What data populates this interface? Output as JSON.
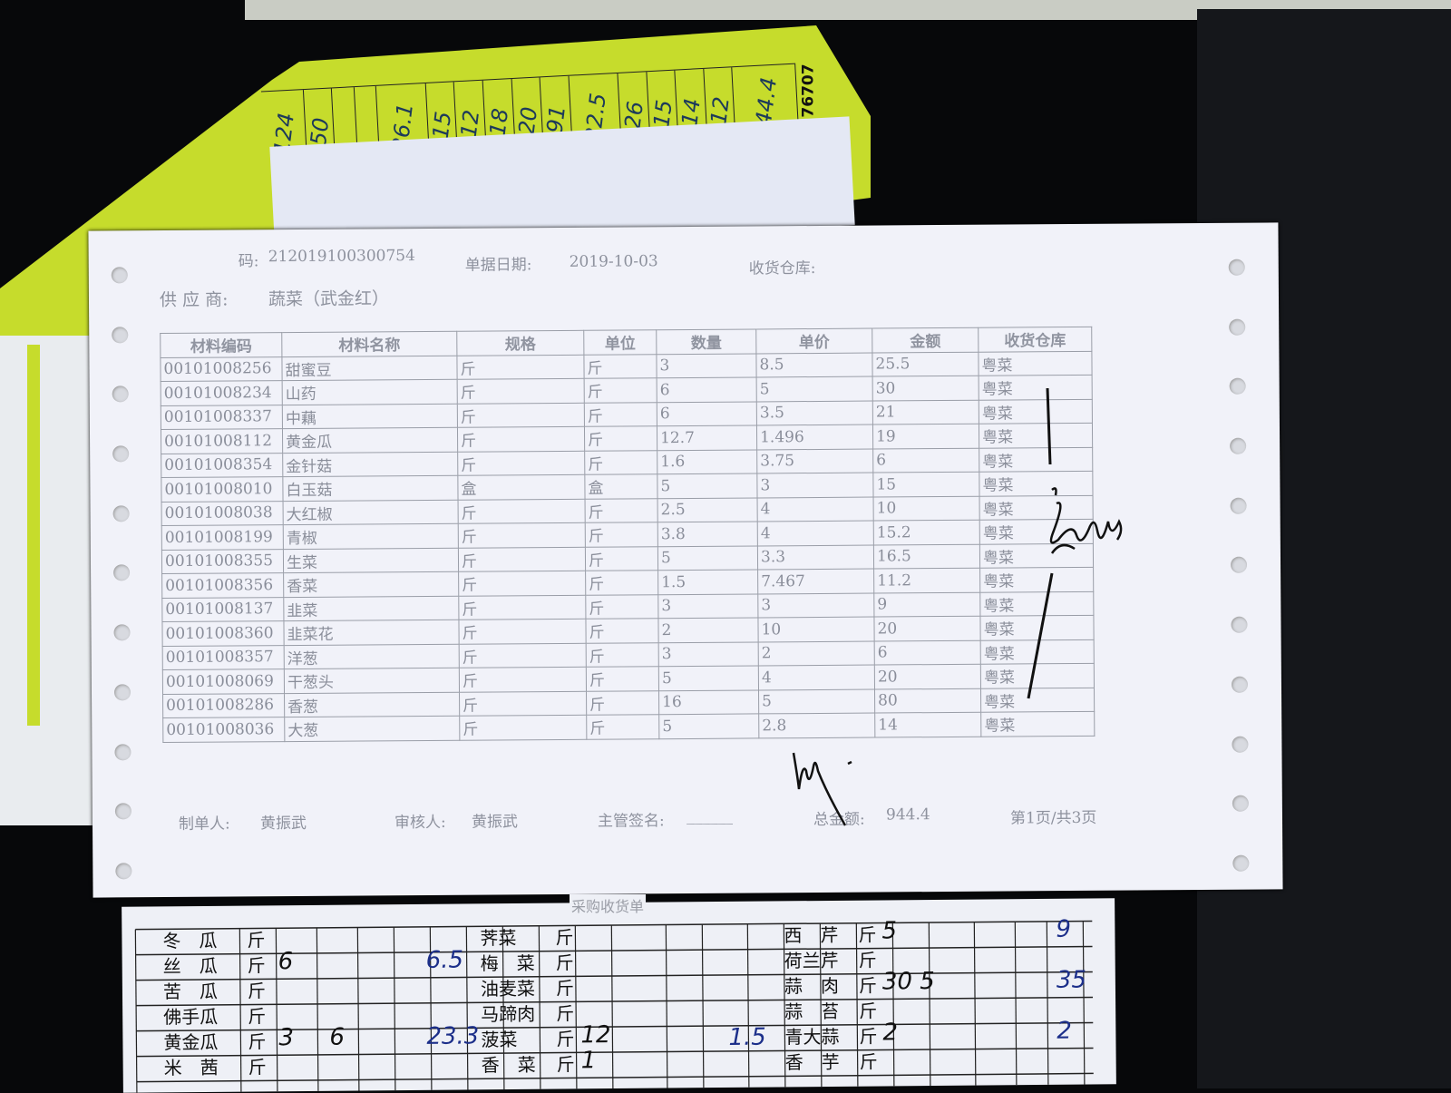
{
  "yellow_sheet": {
    "handwritten": [
      "124",
      "50",
      "",
      "",
      "26.1",
      "15",
      "12",
      "18",
      "20",
      "91",
      "22.5",
      "26",
      "15",
      "14",
      "12",
      "944.4"
    ],
    "printed_number": "76707"
  },
  "receipt": {
    "doc_no_label": "码:",
    "doc_no": "212019100300754",
    "date_label": "单据日期:",
    "date": "2019-10-03",
    "warehouse_label": "收货仓库:",
    "supplier_label": "供 应 商:",
    "supplier": "蔬菜（武金红）",
    "columns": [
      "材料编码",
      "材料名称",
      "规格",
      "单位",
      "数量",
      "单价",
      "金额",
      "收货仓库"
    ],
    "rows": [
      [
        "00101008256",
        "甜蜜豆",
        "斤",
        "斤",
        "3",
        "8.5",
        "25.5",
        "粤菜"
      ],
      [
        "00101008234",
        "山药",
        "斤",
        "斤",
        "6",
        "5",
        "30",
        "粤菜"
      ],
      [
        "00101008337",
        "中藕",
        "斤",
        "斤",
        "6",
        "3.5",
        "21",
        "粤菜"
      ],
      [
        "00101008112",
        "黄金瓜",
        "斤",
        "斤",
        "12.7",
        "1.496",
        "19",
        "粤菜"
      ],
      [
        "00101008354",
        "金针菇",
        "斤",
        "斤",
        "1.6",
        "3.75",
        "6",
        "粤菜"
      ],
      [
        "00101008010",
        "白玉菇",
        "盒",
        "盒",
        "5",
        "3",
        "15",
        "粤菜"
      ],
      [
        "00101008038",
        "大红椒",
        "斤",
        "斤",
        "2.5",
        "4",
        "10",
        "粤菜"
      ],
      [
        "00101008199",
        "青椒",
        "斤",
        "斤",
        "3.8",
        "4",
        "15.2",
        "粤菜"
      ],
      [
        "00101008355",
        "生菜",
        "斤",
        "斤",
        "5",
        "3.3",
        "16.5",
        "粤菜"
      ],
      [
        "00101008356",
        "香菜",
        "斤",
        "斤",
        "1.5",
        "7.467",
        "11.2",
        "粤菜"
      ],
      [
        "00101008137",
        "韭菜",
        "斤",
        "斤",
        "3",
        "3",
        "9",
        "粤菜"
      ],
      [
        "00101008360",
        "韭菜花",
        "斤",
        "斤",
        "2",
        "10",
        "20",
        "粤菜"
      ],
      [
        "00101008357",
        "洋葱",
        "斤",
        "斤",
        "3",
        "2",
        "6",
        "粤菜"
      ],
      [
        "00101008069",
        "干葱头",
        "斤",
        "斤",
        "5",
        "4",
        "20",
        "粤菜"
      ],
      [
        "00101008286",
        "香葱",
        "斤",
        "斤",
        "16",
        "5",
        "80",
        "粤菜"
      ],
      [
        "00101008036",
        "大葱",
        "斤",
        "斤",
        "5",
        "2.8",
        "14",
        "粤菜"
      ]
    ],
    "maker_label": "制单人:",
    "maker": "黄振武",
    "reviewer_label": "审核人:",
    "reviewer": "黄振武",
    "supervisor_label": "主管签名:",
    "supervisor": "______",
    "total_label": "总金额:",
    "total": "944.4",
    "page": "第1页/共3页"
  },
  "bottom_sheet": {
    "title": "采购收货单",
    "left_items": [
      [
        "冬　瓜",
        "斤",
        ""
      ],
      [
        "丝　瓜",
        "斤",
        "6"
      ],
      [
        "苦　瓜",
        "斤",
        ""
      ],
      [
        "佛手瓜",
        "斤",
        ""
      ],
      [
        "黄金瓜",
        "斤",
        "3"
      ],
      [
        "米　茜",
        "斤",
        ""
      ]
    ],
    "left_totals": [
      "",
      "6.5",
      "",
      "",
      "23.3",
      ""
    ],
    "left_extra": [
      "",
      "",
      "",
      "",
      "6",
      ""
    ],
    "mid_items": [
      [
        "荠菜",
        "斤",
        ""
      ],
      [
        "梅　菜",
        "斤",
        ""
      ],
      [
        "油麦菜",
        "斤",
        ""
      ],
      [
        "马蹄肉",
        "斤",
        ""
      ],
      [
        "菠菜",
        "斤",
        "12"
      ],
      [
        "香　菜",
        "斤",
        "1"
      ]
    ],
    "mid_extra": "1.5",
    "right_items": [
      [
        "西　芹",
        "斤",
        "5",
        "9"
      ],
      [
        "荷兰芹",
        "斤",
        "",
        ""
      ],
      [
        "蒜　肉",
        "斤",
        "30 5",
        "35"
      ],
      [
        "蒜　苔",
        "斤",
        "",
        ""
      ],
      [
        "青大蒜",
        "斤",
        "2",
        "2"
      ],
      [
        "香　芋",
        "斤",
        "",
        ""
      ]
    ]
  }
}
